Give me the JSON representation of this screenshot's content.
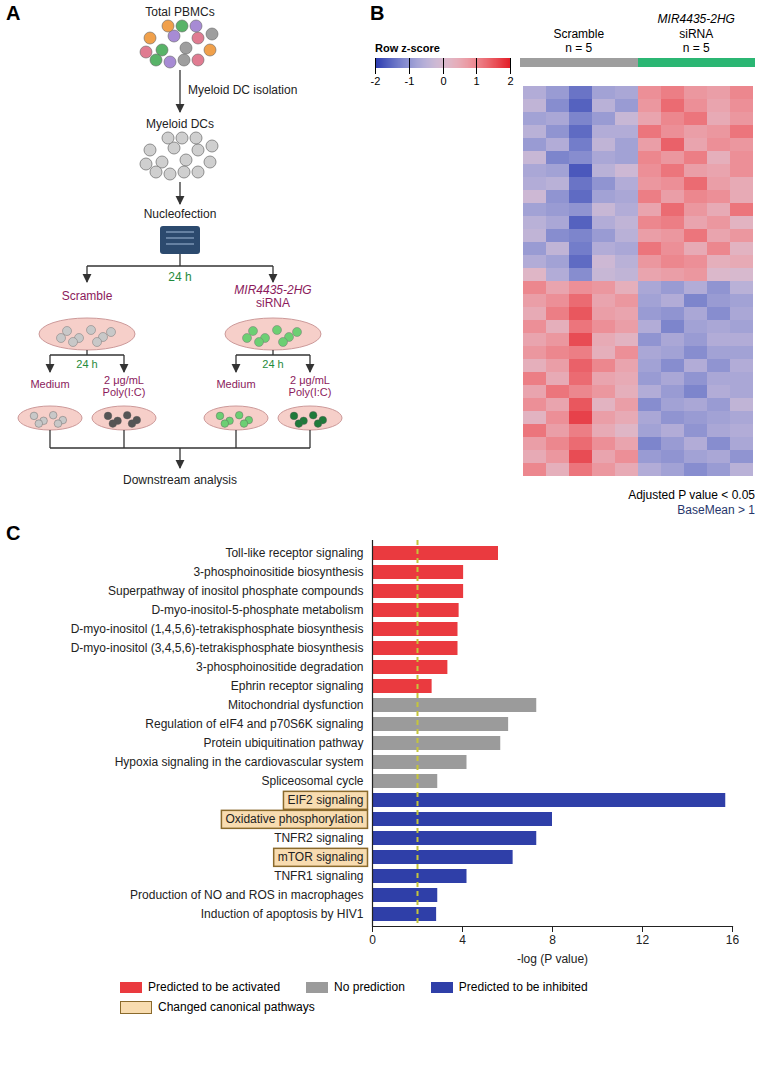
{
  "diagram": {
    "panel_label": "A",
    "source": "Total PBMCs",
    "isolation": "Myeloid DC isolation",
    "isolated": "Myeloid DCs",
    "transfection": "Nucleofection",
    "transfection_time": "24 h",
    "arms": [
      {
        "name": [
          "Scramble"
        ],
        "treatment_time": "24 h",
        "treatments": [
          [
            "Medium"
          ],
          [
            "2 μg/mL",
            "Poly(I:C)"
          ]
        ]
      },
      {
        "name": [
          "MIR4435-2HG",
          "siRNA"
        ],
        "treatment_time": "24 h",
        "treatments": [
          [
            "Medium"
          ],
          [
            "2 μg/mL",
            "Poly(I:C)"
          ]
        ]
      }
    ],
    "output": "Downstream analysis"
  },
  "chart_data": [
    {
      "type": "heatmap",
      "panel_label": "B",
      "tick_labels": false,
      "groups": [
        {
          "name": "Scramble",
          "n_label": "n = 5",
          "color": "#9e9e9e"
        },
        {
          "gene": "MIR4435-2HG",
          "name": "siRNA",
          "n_label": "n = 5",
          "color": "#2bb673"
        }
      ],
      "cells": [
        [
          -0.6,
          -0.9,
          -1.4,
          -0.8,
          -0.7,
          0.9,
          1.1,
          0.8,
          0.7,
          1.0
        ],
        [
          -0.4,
          -1.1,
          -1.6,
          -0.5,
          -0.9,
          0.8,
          1.3,
          0.9,
          0.6,
          0.9
        ],
        [
          -0.8,
          -0.7,
          -1.2,
          -0.9,
          -0.3,
          0.6,
          1.0,
          1.2,
          0.5,
          0.8
        ],
        [
          -0.5,
          -1.0,
          -1.5,
          -0.6,
          -0.6,
          1.2,
          0.9,
          0.7,
          0.8,
          1.2
        ],
        [
          -0.9,
          -0.6,
          -1.3,
          -0.4,
          -0.8,
          0.7,
          1.4,
          0.6,
          0.9,
          0.8
        ],
        [
          -0.3,
          -1.2,
          -1.1,
          -0.7,
          -0.8,
          1.0,
          0.8,
          1.1,
          0.4,
          0.9
        ],
        [
          -0.7,
          -0.8,
          -1.7,
          -0.5,
          -0.2,
          0.9,
          1.2,
          0.7,
          0.6,
          0.9
        ],
        [
          -0.6,
          -0.5,
          -1.4,
          -1.0,
          -0.6,
          0.8,
          0.9,
          1.3,
          0.7,
          0.5
        ],
        [
          -0.2,
          -1.0,
          -1.5,
          -0.8,
          -0.7,
          1.1,
          0.7,
          1.0,
          0.9,
          0.5
        ],
        [
          -0.8,
          -0.9,
          -1.0,
          -0.3,
          -0.6,
          0.6,
          1.3,
          0.8,
          0.5,
          1.2
        ],
        [
          -0.5,
          -0.7,
          -1.6,
          -0.6,
          -0.4,
          1.0,
          1.1,
          0.6,
          0.8,
          0.3
        ],
        [
          -0.4,
          -1.1,
          -1.2,
          -0.9,
          -0.5,
          0.7,
          0.8,
          1.2,
          0.6,
          0.8
        ],
        [
          -0.9,
          -0.4,
          -1.3,
          -0.6,
          -0.7,
          1.2,
          0.9,
          0.5,
          1.0,
          0.3
        ],
        [
          -0.6,
          -0.8,
          -1.5,
          -0.2,
          -0.5,
          0.8,
          1.0,
          0.9,
          0.4,
          0.5
        ],
        [
          0.2,
          -0.6,
          -1.1,
          -0.3,
          -0.4,
          0.6,
          0.7,
          0.8,
          0.1,
          0.0
        ],
        [
          1.0,
          0.6,
          0.9,
          0.8,
          0.4,
          -0.7,
          -0.9,
          -0.6,
          -1.0,
          -0.5
        ],
        [
          0.7,
          0.9,
          1.3,
          0.6,
          0.8,
          -0.8,
          -0.6,
          -1.2,
          -0.9,
          -0.8
        ],
        [
          0.5,
          1.1,
          1.5,
          0.7,
          0.6,
          -0.9,
          -1.0,
          -0.7,
          -1.1,
          -0.7
        ],
        [
          0.9,
          0.4,
          1.2,
          0.9,
          0.7,
          -0.6,
          -1.2,
          -0.8,
          -0.7,
          -0.8
        ],
        [
          0.6,
          0.8,
          1.6,
          0.5,
          0.3,
          -1.0,
          -0.7,
          -0.9,
          -0.6,
          -0.6
        ],
        [
          0.8,
          1.0,
          1.1,
          0.4,
          0.9,
          -0.7,
          -0.8,
          -1.1,
          -0.8,
          -0.8
        ],
        [
          0.4,
          0.7,
          1.4,
          1.0,
          0.6,
          -0.8,
          -1.1,
          -0.6,
          -1.0,
          -0.6
        ],
        [
          1.1,
          0.5,
          1.3,
          0.6,
          0.5,
          -0.9,
          -0.7,
          -1.0,
          -0.7,
          -0.7
        ],
        [
          0.6,
          1.2,
          1.0,
          0.8,
          0.4,
          -0.6,
          -0.9,
          -1.2,
          -0.6,
          -0.7
        ],
        [
          0.9,
          0.6,
          1.5,
          0.3,
          0.7,
          -1.1,
          -0.8,
          -0.7,
          -0.9,
          -0.4
        ],
        [
          0.3,
          0.9,
          1.7,
          0.7,
          0.5,
          -0.7,
          -1.0,
          -0.9,
          -0.8,
          -0.7
        ],
        [
          1.2,
          0.7,
          1.1,
          0.5,
          0.2,
          -0.8,
          -0.6,
          -1.0,
          -0.7,
          -0.6
        ],
        [
          0.7,
          1.0,
          1.3,
          0.9,
          0.6,
          -1.2,
          -0.9,
          -0.6,
          -1.1,
          -0.7
        ],
        [
          0.5,
          0.8,
          1.6,
          0.6,
          0.9,
          -0.9,
          -1.0,
          -0.8,
          -0.7,
          -1.0
        ],
        [
          1.0,
          0.4,
          1.2,
          0.8,
          0.5,
          -0.6,
          -0.8,
          -1.1,
          -0.9,
          -0.5
        ]
      ],
      "colorbar": {
        "label": "Row z-score",
        "range": [
          -2,
          2
        ],
        "ticks": [
          -2,
          -1,
          0,
          1,
          2
        ],
        "colors": [
          "#2b3bb0",
          "#ffffff",
          "#e3202a"
        ]
      },
      "footnotes": [
        "Adjusted P value < 0.05",
        "BaseMean > 1"
      ]
    },
    {
      "type": "bar",
      "panel_label": "C",
      "orientation": "horizontal",
      "legend": "bottom",
      "categories": [
        "Toll-like receptor signaling",
        "3-phosphoinositide biosynthesis",
        "Superpathway of inositol phosphate compounds",
        "D-myo-inositol-5-phosphate metabolism",
        "D-myo-inositol (1,4,5,6)-tetrakisphosphate biosynthesis",
        "D-myo-inositol (3,4,5,6)-tetrakisphosphate biosynthesis",
        "3-phosphoinositide degradation",
        "Ephrin receptor signaling",
        "Mitochondrial dysfunction",
        "Regulation of eIF4 and p70S6K signaling",
        "Protein ubiquitination pathway",
        "Hypoxia signaling in the cardiovascular system",
        "Spliceosomal cycle",
        "EIF2 signaling",
        "Oxidative phosphorylation",
        "TNFR2 signaling",
        "mTOR signaling",
        "TNFR1 signaling",
        "Production of NO and ROS in macrophages",
        "Induction of apoptosis by HIV1"
      ],
      "series": [
        {
          "name": "Predicted to be activated",
          "color": "#ea3a3f",
          "values": [
            5.6,
            4.05,
            4.05,
            3.85,
            3.8,
            3.8,
            3.35,
            2.65,
            null,
            null,
            null,
            null,
            null,
            null,
            null,
            null,
            null,
            null,
            null,
            null
          ]
        },
        {
          "name": "No prediction",
          "color": "#9b9b9b",
          "values": [
            null,
            null,
            null,
            null,
            null,
            null,
            null,
            null,
            7.3,
            6.05,
            5.7,
            4.2,
            2.9,
            null,
            null,
            null,
            null,
            null,
            null,
            null
          ]
        },
        {
          "name": "Predicted to be inhibited",
          "color": "#2f3fa8",
          "values": [
            null,
            null,
            null,
            null,
            null,
            null,
            null,
            null,
            null,
            null,
            null,
            null,
            null,
            15.7,
            8.0,
            7.3,
            6.25,
            4.2,
            2.9,
            2.85
          ]
        }
      ],
      "xlim": [
        0,
        16
      ],
      "xticks": [
        0,
        4,
        8,
        12,
        16
      ],
      "xlabel": "-log (P value)",
      "threshold": 2,
      "highlight": {
        "label": "Changed canonical pathways",
        "color": "#f8dcb0",
        "categories": [
          "EIF2 signaling",
          "Oxidative phosphorylation",
          "mTOR signaling"
        ]
      }
    }
  ]
}
